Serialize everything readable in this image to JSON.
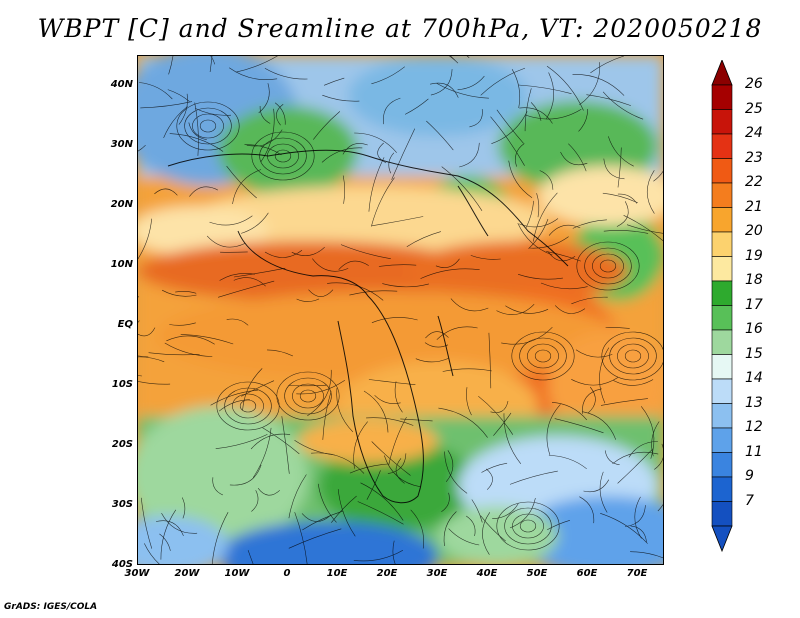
{
  "title": "WBPT [C] and Sreamline at 700hPa, VT: 2020050218",
  "footer": "GrADS: IGES/COLA",
  "lat_labels": [
    "40N",
    "30N",
    "20N",
    "10N",
    "EQ",
    "10S",
    "20S",
    "30S",
    "40S"
  ],
  "lon_labels": [
    "30W",
    "20W",
    "10W",
    "0",
    "10E",
    "20E",
    "30E",
    "40E",
    "50E",
    "60E",
    "70E"
  ],
  "colorbar": {
    "labels": [
      "26",
      "25",
      "24",
      "23",
      "22",
      "21",
      "20",
      "19",
      "18",
      "17",
      "16",
      "15",
      "14",
      "13",
      "12",
      "11",
      "9",
      "7"
    ],
    "colors": [
      "#a50000",
      "#c8140a",
      "#e43214",
      "#f05a14",
      "#f47d1e",
      "#f8a52d",
      "#fcd26e",
      "#fde9a0",
      "#2eaa2e",
      "#58c058",
      "#9ed89e",
      "#e6f8f4",
      "#bcdcf8",
      "#8cc0f0",
      "#5ea2ea",
      "#3a84e0",
      "#1c64d0",
      "#1450c0"
    ]
  }
}
